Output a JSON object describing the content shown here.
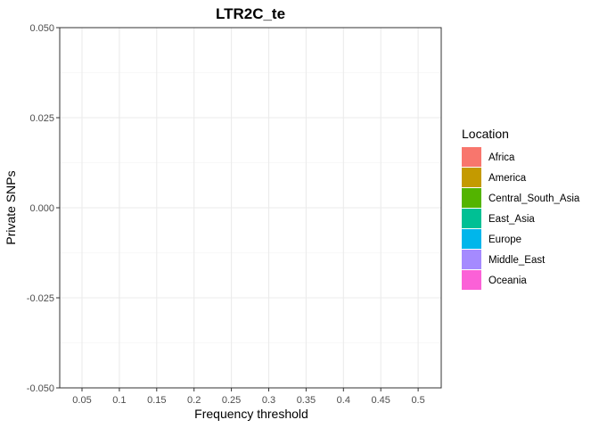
{
  "chart_data": {
    "type": "bar",
    "title": "LTR2C_te",
    "xlabel": "Frequency threshold",
    "ylabel": "Private SNPs",
    "categories": [
      "0.05",
      "0.1",
      "0.15",
      "0.2",
      "0.25",
      "0.3",
      "0.35",
      "0.4",
      "0.45",
      "0.5"
    ],
    "x_tick_labels": [
      "0.05",
      "0.1",
      "0.15",
      "0.2",
      "0.25",
      "0.3",
      "0.35",
      "0.4",
      "0.45",
      "0.5"
    ],
    "y_ticks": [
      -0.05,
      -0.025,
      0,
      0.025,
      0.05
    ],
    "y_tick_labels": [
      "-0.050",
      "-0.025",
      "0.000",
      "0.025",
      "0.050"
    ],
    "ylim": [
      -0.05,
      0.05
    ],
    "grid": true,
    "series": [],
    "legend": {
      "title": "Location",
      "position": "right",
      "items": [
        {
          "label": "Africa",
          "color": "#F8766D"
        },
        {
          "label": "America",
          "color": "#C49A00"
        },
        {
          "label": "Central_South_Asia",
          "color": "#53B400"
        },
        {
          "label": "East_Asia",
          "color": "#00C094"
        },
        {
          "label": "Europe",
          "color": "#00B6EB"
        },
        {
          "label": "Middle_East",
          "color": "#A58AFF"
        },
        {
          "label": "Oceania",
          "color": "#FB61D7"
        }
      ]
    }
  }
}
